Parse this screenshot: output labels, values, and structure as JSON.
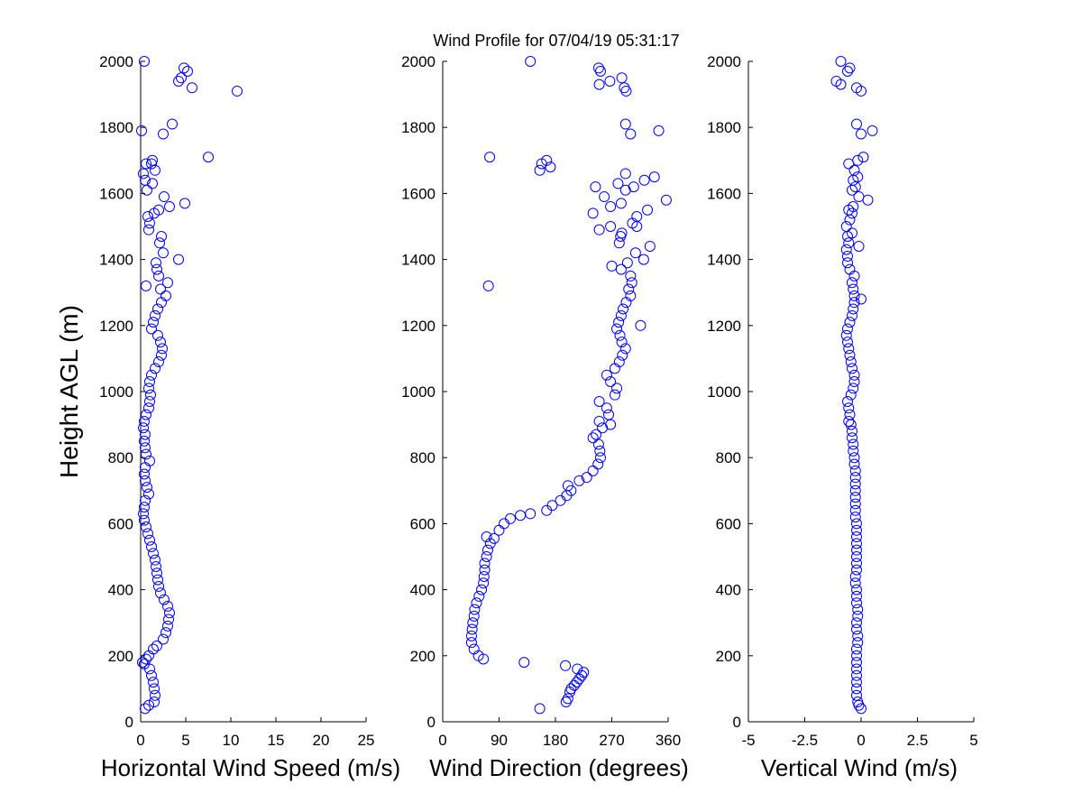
{
  "title": "Wind Profile for  07/04/19 05:31:17",
  "ylabel": "Height AGL (m)",
  "chart_data": [
    {
      "type": "scatter",
      "xlabel": "Horizontal Wind Speed (m/s)",
      "ylabel": "Height AGL (m)",
      "xlim": [
        0,
        25
      ],
      "ylim": [
        0,
        2000
      ],
      "xticks": [
        "0",
        "5",
        "10",
        "15",
        "20",
        "25"
      ],
      "yticks": [
        "0",
        "200",
        "400",
        "600",
        "800",
        "1000",
        "1200",
        "1400",
        "1600",
        "1800",
        "2000"
      ],
      "marker": "open-circle",
      "color": "#0000ff",
      "grid": false,
      "points": [
        [
          0.5,
          40
        ],
        [
          0.9,
          50
        ],
        [
          1.5,
          60
        ],
        [
          1.6,
          80
        ],
        [
          1.5,
          100
        ],
        [
          1.4,
          120
        ],
        [
          1.2,
          140
        ],
        [
          1.0,
          160
        ],
        [
          0.4,
          175
        ],
        [
          0.2,
          180
        ],
        [
          0.6,
          190
        ],
        [
          0.9,
          200
        ],
        [
          1.4,
          220
        ],
        [
          1.8,
          230
        ],
        [
          2.5,
          250
        ],
        [
          2.8,
          270
        ],
        [
          3.0,
          290
        ],
        [
          3.1,
          310
        ],
        [
          3.2,
          330
        ],
        [
          3.0,
          350
        ],
        [
          2.6,
          370
        ],
        [
          2.2,
          390
        ],
        [
          2.0,
          410
        ],
        [
          1.9,
          430
        ],
        [
          1.8,
          450
        ],
        [
          1.7,
          470
        ],
        [
          1.6,
          490
        ],
        [
          1.4,
          510
        ],
        [
          1.2,
          530
        ],
        [
          1.0,
          550
        ],
        [
          0.8,
          570
        ],
        [
          0.6,
          590
        ],
        [
          0.4,
          610
        ],
        [
          0.3,
          630
        ],
        [
          0.4,
          650
        ],
        [
          0.5,
          670
        ],
        [
          0.9,
          690
        ],
        [
          0.7,
          710
        ],
        [
          0.5,
          730
        ],
        [
          0.4,
          750
        ],
        [
          0.5,
          770
        ],
        [
          1.0,
          790
        ],
        [
          0.6,
          810
        ],
        [
          0.5,
          830
        ],
        [
          0.4,
          850
        ],
        [
          0.5,
          870
        ],
        [
          0.3,
          890
        ],
        [
          0.4,
          910
        ],
        [
          0.6,
          930
        ],
        [
          0.9,
          950
        ],
        [
          1.0,
          970
        ],
        [
          1.1,
          990
        ],
        [
          0.9,
          1010
        ],
        [
          1.0,
          1030
        ],
        [
          1.2,
          1050
        ],
        [
          1.6,
          1070
        ],
        [
          2.0,
          1090
        ],
        [
          2.3,
          1110
        ],
        [
          2.4,
          1130
        ],
        [
          2.2,
          1150
        ],
        [
          1.9,
          1170
        ],
        [
          1.2,
          1190
        ],
        [
          1.4,
          1210
        ],
        [
          1.6,
          1230
        ],
        [
          1.9,
          1250
        ],
        [
          2.3,
          1270
        ],
        [
          2.8,
          1290
        ],
        [
          2.2,
          1310
        ],
        [
          0.6,
          1320
        ],
        [
          3.0,
          1330
        ],
        [
          2.0,
          1350
        ],
        [
          1.8,
          1370
        ],
        [
          1.7,
          1390
        ],
        [
          4.2,
          1400
        ],
        [
          2.5,
          1420
        ],
        [
          2.1,
          1450
        ],
        [
          2.3,
          1470
        ],
        [
          0.9,
          1490
        ],
        [
          1.0,
          1510
        ],
        [
          0.8,
          1530
        ],
        [
          1.5,
          1540
        ],
        [
          2.0,
          1550
        ],
        [
          4.9,
          1570
        ],
        [
          3.2,
          1560
        ],
        [
          2.6,
          1590
        ],
        [
          0.7,
          1610
        ],
        [
          1.3,
          1630
        ],
        [
          0.5,
          1640
        ],
        [
          0.3,
          1660
        ],
        [
          1.6,
          1670
        ],
        [
          1.2,
          1690
        ],
        [
          1.3,
          1700
        ],
        [
          0.6,
          1690
        ],
        [
          7.5,
          1710
        ],
        [
          0.1,
          1790
        ],
        [
          2.5,
          1780
        ],
        [
          3.5,
          1810
        ],
        [
          10.7,
          1910
        ],
        [
          5.7,
          1920
        ],
        [
          4.2,
          1940
        ],
        [
          4.5,
          1950
        ],
        [
          4.8,
          1980
        ],
        [
          5.2,
          1970
        ],
        [
          0.4,
          2000
        ]
      ]
    },
    {
      "type": "scatter",
      "xlabel": "Wind Direction (degrees)",
      "xlim": [
        0,
        360
      ],
      "ylim": [
        0,
        2000
      ],
      "xticks": [
        "0",
        "90",
        "180",
        "270",
        "360"
      ],
      "yticks": [
        "0",
        "200",
        "400",
        "600",
        "800",
        "1000",
        "1200",
        "1400",
        "1600",
        "1800",
        "2000"
      ],
      "marker": "open-circle",
      "color": "#0000ff",
      "grid": false,
      "points": [
        [
          155,
          40
        ],
        [
          197,
          60
        ],
        [
          200,
          70
        ],
        [
          203,
          90
        ],
        [
          205,
          100
        ],
        [
          210,
          110
        ],
        [
          214,
          120
        ],
        [
          218,
          130
        ],
        [
          222,
          140
        ],
        [
          225,
          150
        ],
        [
          215,
          160
        ],
        [
          196,
          170
        ],
        [
          130,
          180
        ],
        [
          65,
          190
        ],
        [
          57,
          200
        ],
        [
          50,
          220
        ],
        [
          46,
          240
        ],
        [
          46,
          260
        ],
        [
          47,
          280
        ],
        [
          48,
          300
        ],
        [
          50,
          320
        ],
        [
          51,
          340
        ],
        [
          54,
          360
        ],
        [
          58,
          380
        ],
        [
          62,
          400
        ],
        [
          65,
          420
        ],
        [
          66,
          440
        ],
        [
          67,
          460
        ],
        [
          67,
          480
        ],
        [
          70,
          500
        ],
        [
          72,
          520
        ],
        [
          76,
          540
        ],
        [
          82,
          555
        ],
        [
          70,
          560
        ],
        [
          90,
          580
        ],
        [
          98,
          600
        ],
        [
          108,
          615
        ],
        [
          124,
          625
        ],
        [
          140,
          630
        ],
        [
          166,
          640
        ],
        [
          175,
          655
        ],
        [
          188,
          670
        ],
        [
          198,
          685
        ],
        [
          205,
          700
        ],
        [
          200,
          715
        ],
        [
          218,
          730
        ],
        [
          230,
          740
        ],
        [
          240,
          760
        ],
        [
          248,
          780
        ],
        [
          252,
          800
        ],
        [
          251,
          820
        ],
        [
          249,
          840
        ],
        [
          240,
          860
        ],
        [
          245,
          870
        ],
        [
          255,
          890
        ],
        [
          268,
          900
        ],
        [
          250,
          910
        ],
        [
          265,
          930
        ],
        [
          262,
          950
        ],
        [
          250,
          970
        ],
        [
          275,
          990
        ],
        [
          278,
          1010
        ],
        [
          268,
          1030
        ],
        [
          262,
          1050
        ],
        [
          275,
          1070
        ],
        [
          282,
          1090
        ],
        [
          287,
          1110
        ],
        [
          292,
          1130
        ],
        [
          286,
          1150
        ],
        [
          283,
          1170
        ],
        [
          278,
          1190
        ],
        [
          316,
          1200
        ],
        [
          281,
          1210
        ],
        [
          285,
          1230
        ],
        [
          288,
          1250
        ],
        [
          293,
          1270
        ],
        [
          300,
          1290
        ],
        [
          297,
          1310
        ],
        [
          302,
          1330
        ],
        [
          300,
          1350
        ],
        [
          73,
          1320
        ],
        [
          285,
          1370
        ],
        [
          270,
          1380
        ],
        [
          295,
          1390
        ],
        [
          321,
          1400
        ],
        [
          308,
          1420
        ],
        [
          331,
          1440
        ],
        [
          282,
          1450
        ],
        [
          284,
          1470
        ],
        [
          286,
          1480
        ],
        [
          310,
          1500
        ],
        [
          268,
          1500
        ],
        [
          250,
          1490
        ],
        [
          303,
          1510
        ],
        [
          310,
          1530
        ],
        [
          240,
          1540
        ],
        [
          327,
          1550
        ],
        [
          268,
          1560
        ],
        [
          285,
          1570
        ],
        [
          357,
          1580
        ],
        [
          258,
          1590
        ],
        [
          292,
          1610
        ],
        [
          305,
          1620
        ],
        [
          244,
          1620
        ],
        [
          280,
          1630
        ],
        [
          322,
          1640
        ],
        [
          338,
          1650
        ],
        [
          292,
          1660
        ],
        [
          155,
          1670
        ],
        [
          172,
          1680
        ],
        [
          158,
          1690
        ],
        [
          166,
          1700
        ],
        [
          75,
          1710
        ],
        [
          345,
          1790
        ],
        [
          300,
          1780
        ],
        [
          292,
          1810
        ],
        [
          293,
          1910
        ],
        [
          290,
          1920
        ],
        [
          286,
          1950
        ],
        [
          267,
          1940
        ],
        [
          250,
          1930
        ],
        [
          252,
          1970
        ],
        [
          249,
          1980
        ],
        [
          140,
          2000
        ]
      ]
    },
    {
      "type": "scatter",
      "xlabel": "Vertical Wind (m/s)",
      "xlim": [
        -5,
        5
      ],
      "ylim": [
        0,
        2000
      ],
      "xticks": [
        "-5",
        "-2.5",
        "0",
        "2.5",
        "5"
      ],
      "yticks": [
        "0",
        "200",
        "400",
        "600",
        "800",
        "1000",
        "1200",
        "1400",
        "1600",
        "1800",
        "2000"
      ],
      "marker": "open-circle",
      "color": "#0000ff",
      "grid": false,
      "points": [
        [
          0.0,
          40
        ],
        [
          -0.1,
          50
        ],
        [
          -0.15,
          60
        ],
        [
          -0.2,
          80
        ],
        [
          -0.2,
          100
        ],
        [
          -0.2,
          120
        ],
        [
          -0.2,
          140
        ],
        [
          -0.2,
          160
        ],
        [
          -0.2,
          180
        ],
        [
          -0.2,
          200
        ],
        [
          -0.2,
          220
        ],
        [
          -0.15,
          240
        ],
        [
          -0.15,
          260
        ],
        [
          -0.2,
          280
        ],
        [
          -0.2,
          300
        ],
        [
          -0.15,
          320
        ],
        [
          -0.15,
          340
        ],
        [
          -0.2,
          360
        ],
        [
          -0.2,
          380
        ],
        [
          -0.2,
          400
        ],
        [
          -0.25,
          420
        ],
        [
          -0.25,
          440
        ],
        [
          -0.2,
          460
        ],
        [
          -0.2,
          480
        ],
        [
          -0.2,
          500
        ],
        [
          -0.2,
          520
        ],
        [
          -0.2,
          540
        ],
        [
          -0.2,
          560
        ],
        [
          -0.2,
          580
        ],
        [
          -0.2,
          600
        ],
        [
          -0.25,
          620
        ],
        [
          -0.25,
          640
        ],
        [
          -0.25,
          660
        ],
        [
          -0.25,
          680
        ],
        [
          -0.25,
          700
        ],
        [
          -0.25,
          720
        ],
        [
          -0.25,
          740
        ],
        [
          -0.25,
          760
        ],
        [
          -0.3,
          780
        ],
        [
          -0.3,
          800
        ],
        [
          -0.35,
          820
        ],
        [
          -0.35,
          840
        ],
        [
          -0.4,
          860
        ],
        [
          -0.4,
          880
        ],
        [
          -0.45,
          900
        ],
        [
          -0.55,
          910
        ],
        [
          -0.5,
          930
        ],
        [
          -0.55,
          950
        ],
        [
          -0.6,
          970
        ],
        [
          -0.45,
          990
        ],
        [
          -0.35,
          1010
        ],
        [
          -0.3,
          1030
        ],
        [
          -0.3,
          1050
        ],
        [
          -0.4,
          1070
        ],
        [
          -0.45,
          1090
        ],
        [
          -0.5,
          1110
        ],
        [
          -0.55,
          1130
        ],
        [
          -0.6,
          1150
        ],
        [
          -0.65,
          1170
        ],
        [
          -0.6,
          1190
        ],
        [
          -0.5,
          1210
        ],
        [
          -0.4,
          1230
        ],
        [
          -0.35,
          1250
        ],
        [
          -0.3,
          1270
        ],
        [
          0.0,
          1280
        ],
        [
          -0.3,
          1290
        ],
        [
          -0.35,
          1310
        ],
        [
          -0.4,
          1330
        ],
        [
          -0.3,
          1350
        ],
        [
          -0.5,
          1370
        ],
        [
          -0.6,
          1390
        ],
        [
          -0.6,
          1410
        ],
        [
          -0.65,
          1430
        ],
        [
          -0.1,
          1440
        ],
        [
          -0.55,
          1450
        ],
        [
          -0.6,
          1470
        ],
        [
          -0.4,
          1480
        ],
        [
          -0.65,
          1500
        ],
        [
          -0.5,
          1520
        ],
        [
          -0.4,
          1540
        ],
        [
          -0.55,
          1550
        ],
        [
          -0.35,
          1560
        ],
        [
          0.3,
          1580
        ],
        [
          -0.1,
          1590
        ],
        [
          -0.4,
          1610
        ],
        [
          -0.25,
          1620
        ],
        [
          -0.35,
          1640
        ],
        [
          -0.15,
          1650
        ],
        [
          -0.3,
          1670
        ],
        [
          -0.55,
          1690
        ],
        [
          -0.15,
          1700
        ],
        [
          0.1,
          1710
        ],
        [
          0.5,
          1790
        ],
        [
          0.0,
          1780
        ],
        [
          -0.2,
          1810
        ],
        [
          -0.2,
          1920
        ],
        [
          0.0,
          1910
        ],
        [
          -1.1,
          1940
        ],
        [
          -0.9,
          1930
        ],
        [
          -0.6,
          1970
        ],
        [
          -0.5,
          1980
        ],
        [
          -0.9,
          2000
        ]
      ]
    }
  ]
}
